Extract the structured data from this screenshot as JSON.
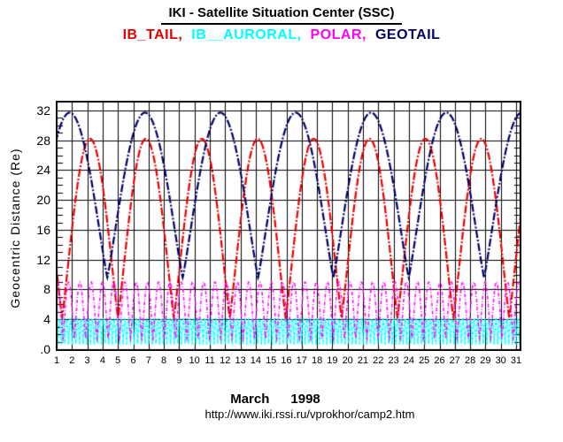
{
  "header": {
    "title": "IKI - Satellite Situation Center (SSC)"
  },
  "legend": [
    {
      "label": "IB_TAIL",
      "separator": ",",
      "color": "#e60000"
    },
    {
      "label": "IB__AURORAL",
      "separator": ",",
      "color": "#00ffff"
    },
    {
      "label": "POLAR",
      "separator": ",",
      "color": "#ff00ff"
    },
    {
      "label": "GEOTAIL",
      "separator": "",
      "color": "#000066"
    }
  ],
  "footer": {
    "month": "March",
    "year": "1998",
    "url": "http://www.iki.rssi.ru/vprokhor/camp2.htm"
  },
  "chart_data": {
    "type": "line",
    "title": "IKI - Satellite Situation Center (SSC)",
    "xlabel": "",
    "ylabel": "Geocentric Distance (Re)",
    "x_axis_month": "March 1998",
    "xlim": [
      0.94,
      31.35
    ],
    "ylim": [
      0,
      33.4
    ],
    "grid": true,
    "legend_position": "top",
    "x_ticks": [
      1,
      2,
      3,
      4,
      5,
      6,
      7,
      8,
      9,
      10,
      11,
      12,
      13,
      14,
      15,
      16,
      17,
      18,
      19,
      20,
      21,
      22,
      23,
      24,
      25,
      26,
      27,
      28,
      29,
      30,
      31
    ],
    "y_ticks": [
      {
        "label": "32",
        "value": 32
      },
      {
        "label": "28",
        "value": 28
      },
      {
        "label": "24",
        "value": 24
      },
      {
        "label": "20",
        "value": 20
      },
      {
        "label": "16",
        "value": 16
      },
      {
        "label": "12",
        "value": 12
      },
      {
        "label": "8",
        "value": 8
      },
      {
        "label": "4",
        "value": 4
      },
      {
        "label": ".0",
        "value": 0
      }
    ],
    "y_minor_tick_step_re": 1,
    "series": [
      {
        "name": "IB_TAIL",
        "color": "#e60000",
        "apogee_re": 28.2,
        "perigee_re": 4.2,
        "period_days": 3.65,
        "apogee_epoch_day": 3.18,
        "shape_exponent": 0.55,
        "dash": [
          9,
          2,
          2,
          2
        ],
        "line_width": 2.2
      },
      {
        "name": "IB__AURORAL",
        "color": "#00ffff",
        "apogee_re": 4.1,
        "perigee_re": 0.7,
        "period_days": 0.2375,
        "apogee_epoch_day": 0.95,
        "shape_exponent": 0.6,
        "dash": [
          3,
          1,
          1,
          1
        ],
        "line_width": 1.5
      },
      {
        "name": "POLAR",
        "color": "#ff00ff",
        "apogee_re": 9.0,
        "perigee_re": 1.4,
        "period_days": 0.735,
        "apogee_epoch_day": 1.05,
        "shape_exponent": 0.6,
        "dash": [
          4,
          2,
          1,
          2
        ],
        "line_width": 1.5
      },
      {
        "name": "GEOTAIL",
        "color": "#000066",
        "apogee_re": 31.7,
        "perigee_re": 9.6,
        "period_days": 4.92,
        "apogee_epoch_day": 1.85,
        "shape_exponent": 0.55,
        "dash": [
          9,
          2,
          2,
          2
        ],
        "line_width": 2.2
      }
    ]
  }
}
